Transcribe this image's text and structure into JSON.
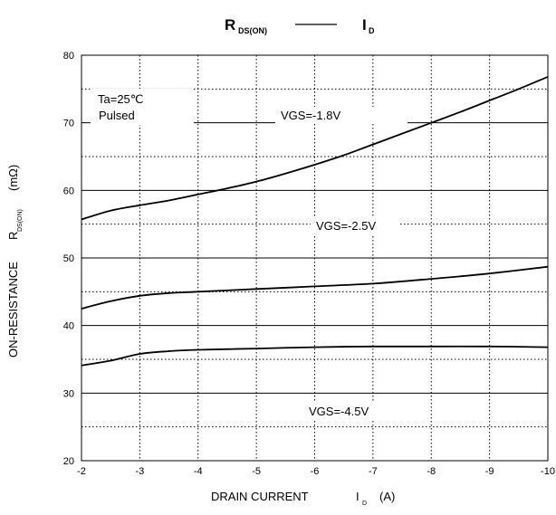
{
  "header": {
    "title_left_main": "R",
    "title_left_sub": "DS(ON)",
    "title_right_main": "I",
    "title_right_sub": "D"
  },
  "chart_data": {
    "type": "line",
    "title": "R_DS(ON) — I_D",
    "xlabel": "DRAIN CURRENT",
    "xlabel_symbol": "I",
    "xlabel_symbol_sub": "D",
    "xlabel_unit": "(A)",
    "ylabel": "ON-RESISTANCE",
    "ylabel_symbol": "R",
    "ylabel_symbol_sub": "DS(ON)",
    "ylabel_unit": "(mΩ)",
    "xlim": [
      -2,
      -10
    ],
    "ylim": [
      20,
      80
    ],
    "x_ticks": [
      -2,
      -3,
      -4,
      -5,
      -6,
      -7,
      -8,
      -9,
      -10
    ],
    "y_ticks": [
      20,
      30,
      40,
      50,
      60,
      70,
      80
    ],
    "grid": true,
    "annotations": [
      "Ta=25℃",
      "Pulsed"
    ],
    "series": [
      {
        "name": "VGS=-1.8V",
        "x": [
          -2,
          -2.5,
          -3,
          -3.5,
          -4,
          -4.5,
          -5,
          -5.5,
          -6,
          -6.5,
          -7,
          -7.5,
          -8,
          -8.5,
          -9,
          -9.5,
          -10
        ],
        "y": [
          55.7,
          57.0,
          57.8,
          58.5,
          59.4,
          60.3,
          61.3,
          62.5,
          63.8,
          65.2,
          66.8,
          68.4,
          70.0,
          71.6,
          73.3,
          75.0,
          76.8
        ]
      },
      {
        "name": "VGS=-2.5V",
        "x": [
          -2,
          -2.5,
          -3,
          -3.5,
          -4,
          -5,
          -6,
          -7,
          -8,
          -9,
          -10
        ],
        "y": [
          42.5,
          43.6,
          44.4,
          44.8,
          45.0,
          45.4,
          45.8,
          46.2,
          46.9,
          47.7,
          48.7
        ]
      },
      {
        "name": "VGS=-4.5V",
        "x": [
          -2,
          -2.5,
          -3,
          -3.5,
          -4,
          -5,
          -6,
          -7,
          -8,
          -9,
          -10
        ],
        "y": [
          34.1,
          34.8,
          35.8,
          36.2,
          36.4,
          36.6,
          36.8,
          36.9,
          36.9,
          36.9,
          36.8
        ]
      }
    ]
  }
}
